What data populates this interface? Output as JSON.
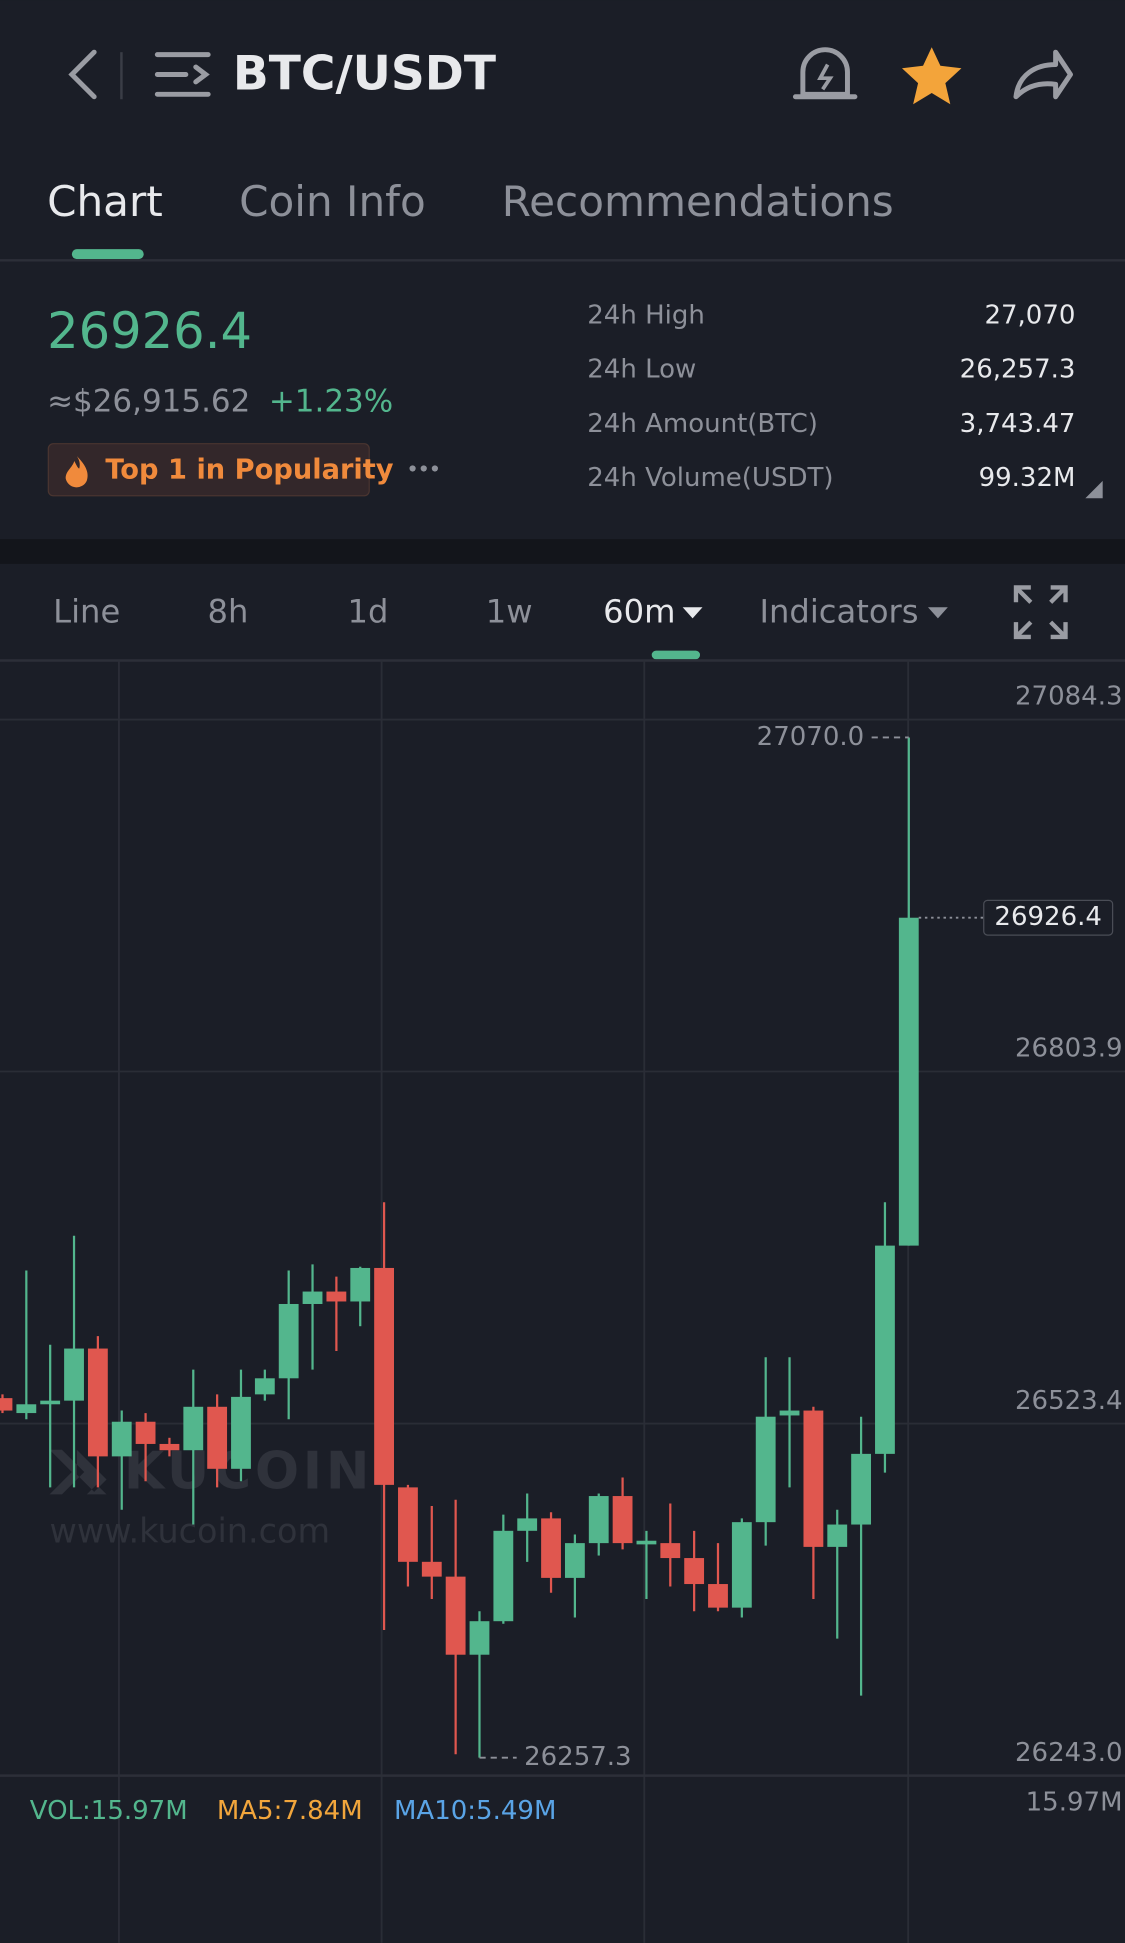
{
  "header": {
    "pair": "BTC/USDT"
  },
  "tabs": [
    "Chart",
    "Coin Info",
    "Recommendations"
  ],
  "price": {
    "last": "26926.4",
    "usd": "≈$26,915.62",
    "change": "+1.23%",
    "badge": "Top 1 in Popularity"
  },
  "stats": [
    {
      "label": "24h High",
      "value": "27,070"
    },
    {
      "label": "24h Low",
      "value": "26,257.3"
    },
    {
      "label": "24h Amount(BTC)",
      "value": "3,743.47"
    },
    {
      "label": "24h Volume(USDT)",
      "value": "99.32M"
    }
  ],
  "intervals": [
    "Line",
    "8h",
    "1d",
    "1w",
    "60m",
    "Indicators"
  ],
  "watermark": {
    "brand": "KUCOIN",
    "url": "www.kucoin.com"
  },
  "chart_data": {
    "type": "candlestick",
    "colors": {
      "up": "#53b68d",
      "down": "#e0574f"
    },
    "open": [
      26543.7,
      26531.8,
      26538.8,
      26541.7,
      26583.2,
      26497.3,
      26524.9,
      26507.2,
      26502.2,
      26536.8,
      26487.4,
      26546.7,
      26559.5,
      26618.7,
      26628.6,
      26620.7,
      26647.4,
      26472.6,
      26413.3,
      26401.5,
      26339.3,
      26366.0,
      26438.0,
      26447.9,
      26400.5,
      26428.2,
      26465.7,
      26427.2,
      26428.2,
      26416.3,
      26395.6,
      26376.8,
      26444.9,
      26529.9,
      26533.8,
      26425.2,
      26443.0,
      26499.3,
      26665.2
    ],
    "high": [
      26546.7,
      26645.4,
      26586.2,
      26673.1,
      26593.1,
      26533.8,
      26531.8,
      26512.1,
      26566.4,
      26546.7,
      26566.4,
      26566.4,
      26645.4,
      26650.3,
      26640.5,
      26648.4,
      26699.7,
      26474.6,
      26457.8,
      26462.7,
      26373.9,
      26450.9,
      26467.7,
      26452.8,
      26435.1,
      26467.7,
      26480.5,
      26438.0,
      26459.8,
      26438.0,
      26428.2,
      26447.9,
      26576.3,
      26576.3,
      26536.8,
      26454.8,
      26528.9,
      26699.7,
      27070.0
    ],
    "low": [
      26531.8,
      26526.9,
      26472.6,
      26472.6,
      26472.6,
      26454.8,
      26477.5,
      26497.3,
      26443.0,
      26472.6,
      26477.5,
      26541.7,
      26526.9,
      26566.4,
      26581.2,
      26601.0,
      26359.0,
      26393.6,
      26383.7,
      26260.0,
      26257.3,
      26364.0,
      26413.3,
      26388.7,
      26368.9,
      26418.3,
      26423.2,
      26383.7,
      26393.6,
      26373.9,
      26373.9,
      26368.9,
      26426.2,
      26472.6,
      26383.7,
      26352.1,
      26306.7,
      26484.4,
      26665.2
    ],
    "close": [
      26533.8,
      26538.8,
      26541.7,
      26583.2,
      26497.3,
      26524.9,
      26507.2,
      26502.2,
      26536.8,
      26487.4,
      26544.7,
      26559.5,
      26618.7,
      26628.6,
      26620.7,
      26647.4,
      26474.6,
      26413.3,
      26401.5,
      26339.3,
      26366.0,
      26438.0,
      26447.9,
      26400.5,
      26428.2,
      26465.7,
      26428.2,
      26430.1,
      26416.3,
      26395.6,
      26376.8,
      26444.9,
      26528.9,
      26533.8,
      26425.2,
      26443.0,
      26499.3,
      26665.2,
      26926.4
    ],
    "ylim": [
      26243.0,
      27131.3
    ],
    "yticks": [
      27084.3,
      26803.9,
      26523.4,
      {
        "value": 26243.0,
        "label": "26243.0"
      }
    ],
    "grid": true,
    "annotations": {
      "high": {
        "value": 27070.0,
        "label": "27070.0"
      },
      "low": {
        "value": 26257.3,
        "label": "26257.3"
      },
      "last": {
        "value": 26926.4,
        "label": "26926.4"
      }
    },
    "volume": {
      "vol": "VOL:15.97M",
      "ma5": "MA5:7.84M",
      "ma10": "MA10:5.49M",
      "axis_max": "15.97M"
    }
  }
}
